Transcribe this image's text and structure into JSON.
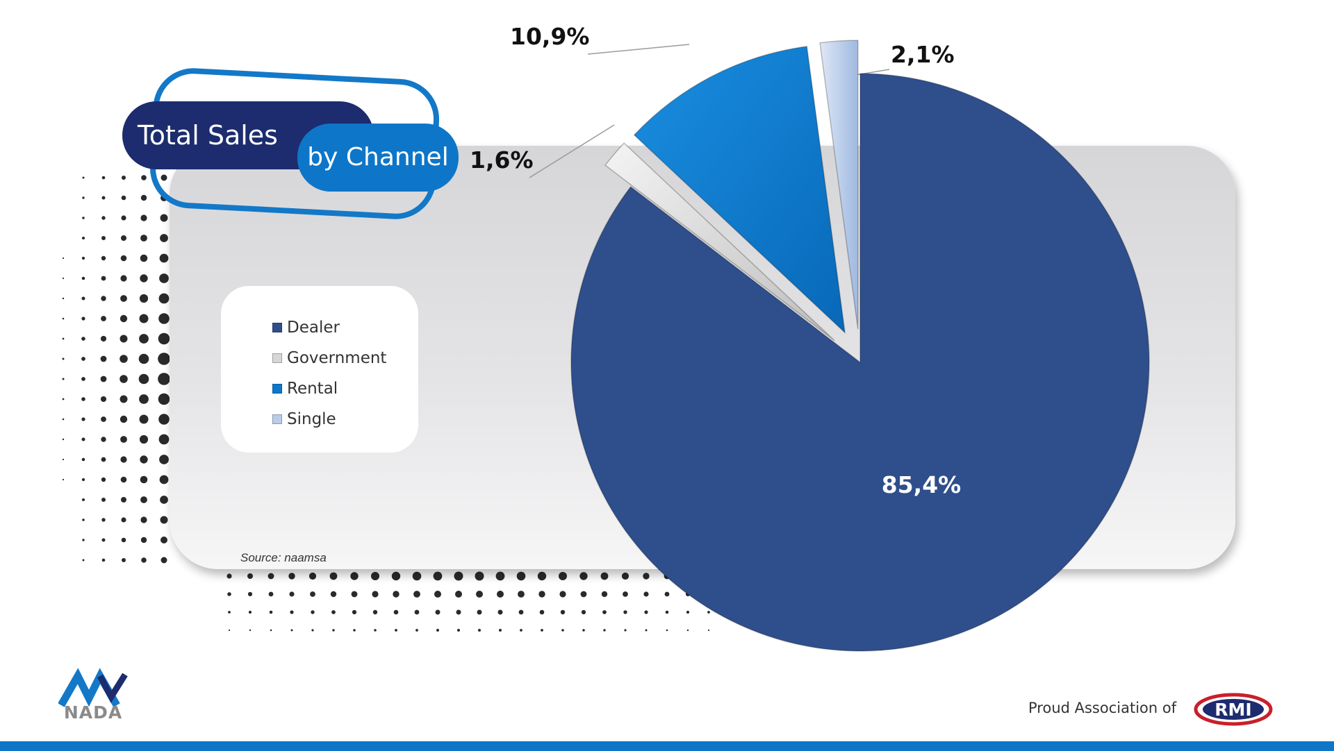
{
  "header": {
    "title_main": "Total Sales",
    "title_sub": "by Channel"
  },
  "chart_data": {
    "type": "pie",
    "title": "Total Sales by Channel",
    "unit": "%",
    "slices": [
      {
        "name": "Dealer",
        "value": 85.4,
        "label": "85,4%",
        "color": "#2f4e8c",
        "exploded": false
      },
      {
        "name": "Government",
        "value": 1.6,
        "label": "1,6%",
        "color": "#d6d6d6",
        "exploded": true
      },
      {
        "name": "Rental",
        "value": 10.9,
        "label": "10,9%",
        "color": "#0b78cc",
        "exploded": true
      },
      {
        "name": "Single",
        "value": 2.1,
        "label": "2,1%",
        "color": "#b8cdea",
        "exploded": true
      }
    ],
    "legend": {
      "position": "left",
      "items": [
        "Dealer",
        "Government",
        "Rental",
        "Single"
      ]
    },
    "source": "Source: naamsa"
  },
  "footer": {
    "brand_left": "NADA",
    "tagline": "Proud Association of",
    "brand_right": "RMI",
    "accent_color": "#0e76c8"
  }
}
